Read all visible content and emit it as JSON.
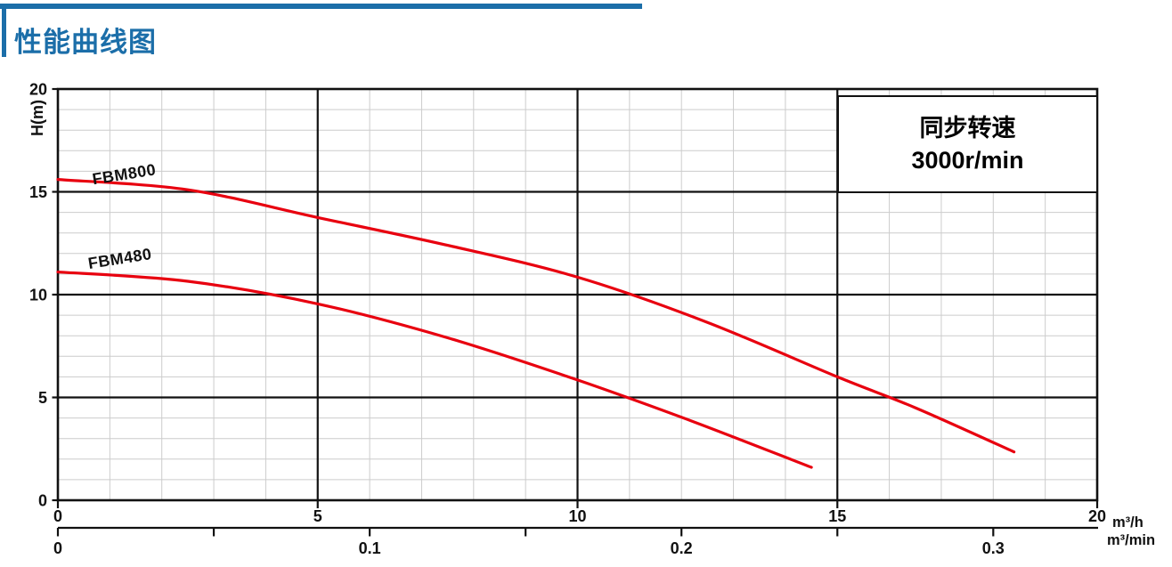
{
  "colors": {
    "accent_blue": "#1b6ea9",
    "curve_red": "#e8000f",
    "grid_minor": "#cccccc",
    "axis_black": "#111111"
  },
  "chart_data": {
    "type": "line",
    "title": "性能曲线图",
    "annotation": {
      "line1": "同步转速",
      "line2": "3000r/min"
    },
    "y_axis": {
      "label": "H(m)",
      "min": 0,
      "max": 20,
      "major_step": 5,
      "minor_step": 1,
      "tick_labels": [
        {
          "value": 0,
          "label": "0"
        },
        {
          "value": 5,
          "label": "5"
        },
        {
          "value": 10,
          "label": "10"
        },
        {
          "value": 15,
          "label": "15"
        },
        {
          "value": 20,
          "label": "20"
        }
      ]
    },
    "x_axis_primary": {
      "unit": "m³/h",
      "min": 0,
      "max": 20,
      "major_step": 5,
      "minor_step": 1,
      "tick_labels": [
        {
          "value": 0,
          "label": "0"
        },
        {
          "value": 5,
          "label": "5"
        },
        {
          "value": 10,
          "label": "10"
        },
        {
          "value": 15,
          "label": "15"
        },
        {
          "value": 20,
          "label": "20"
        }
      ]
    },
    "x_axis_secondary": {
      "unit": "m³/min",
      "conversion_m3h_per_m3min": 60,
      "ticks": [
        {
          "value": 0,
          "label": "0"
        },
        {
          "value": 0.05,
          "label": ""
        },
        {
          "value": 0.1,
          "label": "0.1"
        },
        {
          "value": 0.15,
          "label": ""
        },
        {
          "value": 0.2,
          "label": "0.2"
        },
        {
          "value": 0.25,
          "label": ""
        },
        {
          "value": 0.3,
          "label": "0.3"
        }
      ]
    },
    "grid": {
      "minor": true,
      "major": true
    },
    "series": [
      {
        "name": "FBM800",
        "points": [
          [
            0,
            15.6
          ],
          [
            2.5,
            15.1
          ],
          [
            5,
            13.75
          ],
          [
            7.5,
            12.4
          ],
          [
            10,
            10.85
          ],
          [
            12.5,
            8.65
          ],
          [
            15,
            6.0
          ],
          [
            16.5,
            4.5
          ],
          [
            18.4,
            2.35
          ]
        ],
        "label_q": 0.68,
        "label_h": 15.35,
        "label_angle": -9
      },
      {
        "name": "FBM480",
        "points": [
          [
            0,
            11.1
          ],
          [
            2.5,
            10.65
          ],
          [
            5,
            9.55
          ],
          [
            7.5,
            7.9
          ],
          [
            10,
            5.85
          ],
          [
            12.25,
            3.8
          ],
          [
            14.5,
            1.6
          ]
        ],
        "label_q": 0.6,
        "label_h": 11.25,
        "label_angle": -9
      }
    ]
  }
}
